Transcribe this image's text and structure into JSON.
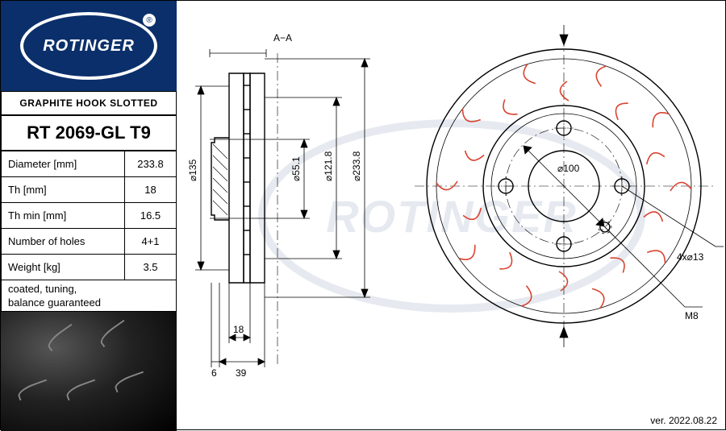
{
  "brand": "ROTINGER",
  "registered": "®",
  "subtitle": "GRAPHITE HOOK SLOTTED",
  "part_number": "RT 2069-GL T9",
  "specs": [
    {
      "label": "Diameter [mm]",
      "value": "233.8"
    },
    {
      "label": "Th [mm]",
      "value": "18"
    },
    {
      "label": "Th min [mm]",
      "value": "16.5"
    },
    {
      "label": "Number of holes",
      "value": "4+1"
    },
    {
      "label": "Weight [kg]",
      "value": "3.5"
    }
  ],
  "notes": "coated, tuning,\nbalance guaranteed",
  "version": "ver. 2022.08.22",
  "colors": {
    "brand_blue": "#0b2f6a",
    "slot_red": "#d9432f",
    "line": "#000000",
    "background": "#ffffff"
  },
  "section_view": {
    "label": "A−A",
    "dims": {
      "d135": "⌀135",
      "d55_1": "⌀55.1",
      "d121_8": "⌀121.8",
      "d233_8": "⌀233.8",
      "w6": "6",
      "w39": "39",
      "w18": "18"
    }
  },
  "face_view": {
    "dims": {
      "pcd": "⌀100",
      "holes": "4x⌀13",
      "thread": "M8"
    },
    "bolt_holes": 4,
    "slot_count_per_ring": 10
  }
}
